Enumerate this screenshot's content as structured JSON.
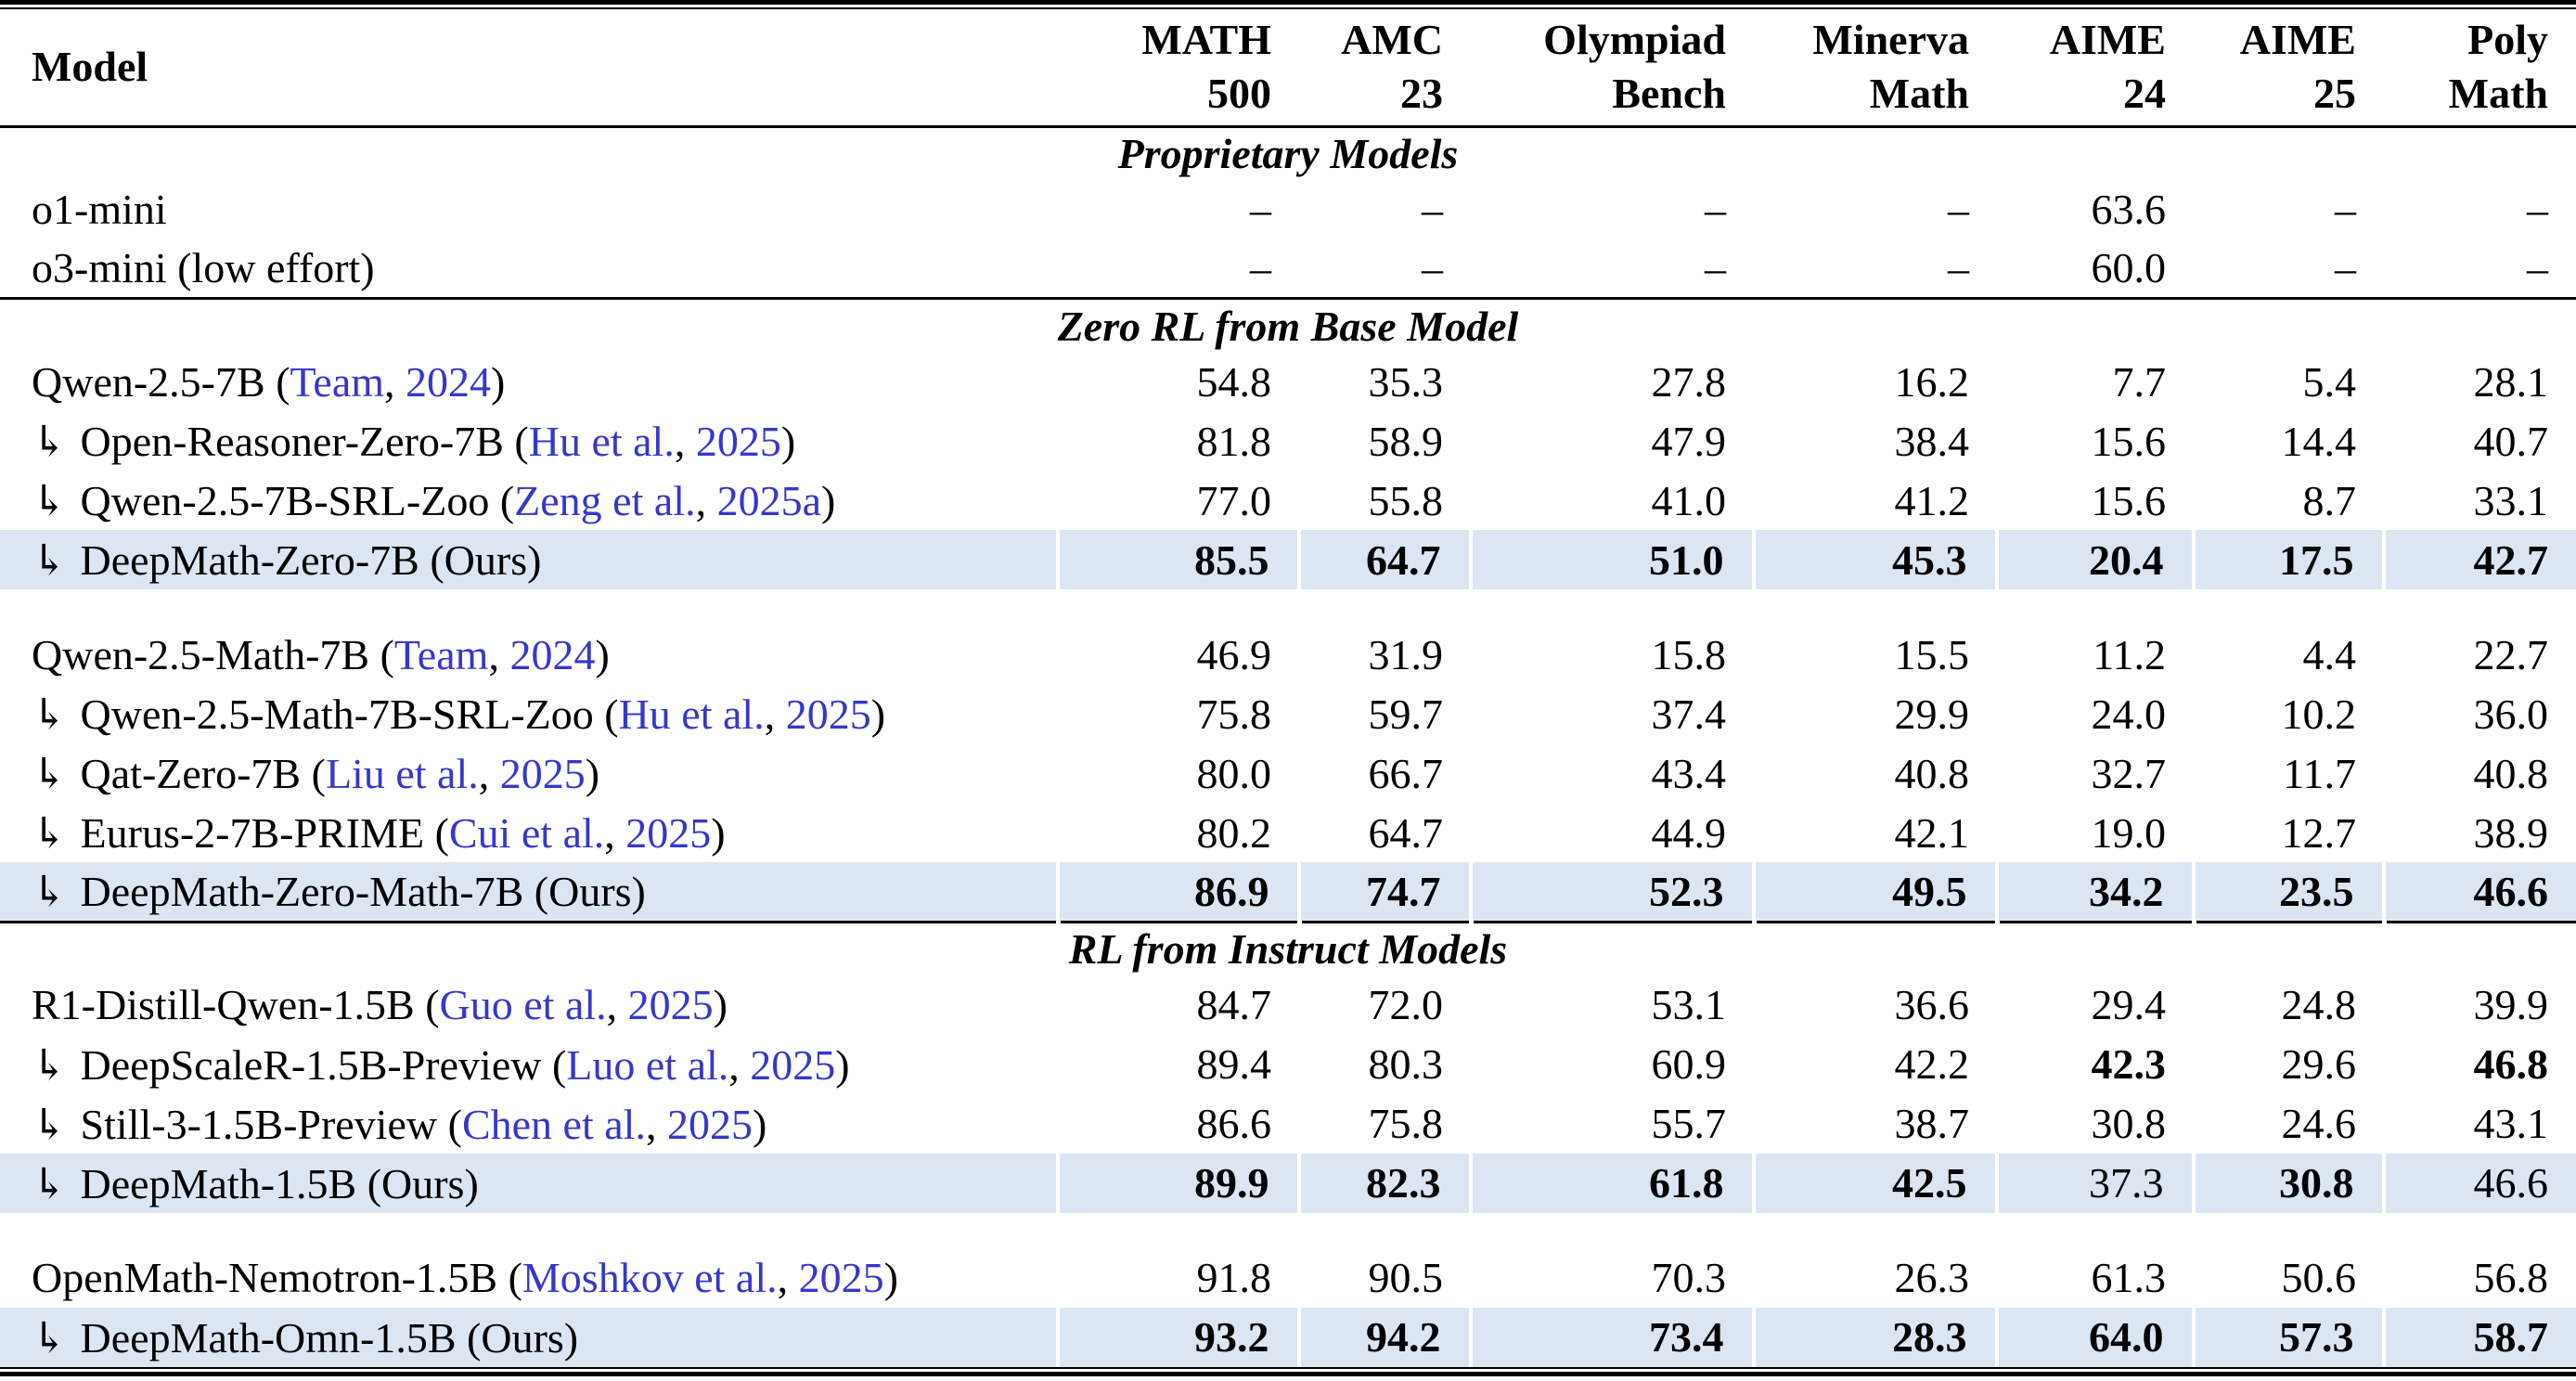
{
  "colors": {
    "highlight_row_bg": "#dce6f3",
    "citation_blue": "#3737cd",
    "text": "#000000",
    "background": "#ffffff"
  },
  "glyphs": {
    "indent_arrow": "↳",
    "dash": "–"
  },
  "header": {
    "model": "Model",
    "columns": [
      "MATH\n500",
      "AMC\n23",
      "Olympiad\nBench",
      "Minerva\nMath",
      "AIME\n24",
      "AIME\n25",
      "Poly\nMath"
    ]
  },
  "sections": [
    {
      "title": "Proprietary Models",
      "groups": [
        [
          {
            "arrow": false,
            "name": "o1-mini",
            "cite": null,
            "suffix": "",
            "highlight": false,
            "values": [
              "–",
              "–",
              "–",
              "–",
              "63.6",
              "–",
              "–"
            ],
            "bold": [
              0,
              0,
              0,
              0,
              0,
              0,
              0
            ]
          },
          {
            "arrow": false,
            "name": "o3-mini (low effort)",
            "cite": null,
            "suffix": "",
            "highlight": false,
            "values": [
              "–",
              "–",
              "–",
              "–",
              "60.0",
              "–",
              "–"
            ],
            "bold": [
              0,
              0,
              0,
              0,
              0,
              0,
              0
            ]
          }
        ]
      ]
    },
    {
      "title": "Zero RL from Base Model",
      "groups": [
        [
          {
            "arrow": false,
            "name": "Qwen-2.5-7B",
            "cite": {
              "author": "Team",
              "year": "2024"
            },
            "suffix": "",
            "highlight": false,
            "values": [
              "54.8",
              "35.3",
              "27.8",
              "16.2",
              "7.7",
              "5.4",
              "28.1"
            ],
            "bold": [
              0,
              0,
              0,
              0,
              0,
              0,
              0
            ]
          },
          {
            "arrow": true,
            "name": "Open-Reasoner-Zero-7B",
            "cite": {
              "author": "Hu et al.",
              "year": "2025"
            },
            "suffix": "",
            "highlight": false,
            "values": [
              "81.8",
              "58.9",
              "47.9",
              "38.4",
              "15.6",
              "14.4",
              "40.7"
            ],
            "bold": [
              0,
              0,
              0,
              0,
              0,
              0,
              0
            ]
          },
          {
            "arrow": true,
            "name": "Qwen-2.5-7B-SRL-Zoo",
            "cite": {
              "author": "Zeng et al.",
              "year": "2025a"
            },
            "suffix": "",
            "highlight": false,
            "values": [
              "77.0",
              "55.8",
              "41.0",
              "41.2",
              "15.6",
              "8.7",
              "33.1"
            ],
            "bold": [
              0,
              0,
              0,
              0,
              0,
              0,
              0
            ]
          },
          {
            "arrow": true,
            "name": "DeepMath-Zero-7B",
            "cite": null,
            "suffix": "(Ours)",
            "highlight": true,
            "values": [
              "85.5",
              "64.7",
              "51.0",
              "45.3",
              "20.4",
              "17.5",
              "42.7"
            ],
            "bold": [
              1,
              1,
              1,
              1,
              1,
              1,
              1
            ]
          }
        ],
        [
          {
            "arrow": false,
            "name": "Qwen-2.5-Math-7B",
            "cite": {
              "author": "Team",
              "year": "2024"
            },
            "suffix": "",
            "highlight": false,
            "values": [
              "46.9",
              "31.9",
              "15.8",
              "15.5",
              "11.2",
              "4.4",
              "22.7"
            ],
            "bold": [
              0,
              0,
              0,
              0,
              0,
              0,
              0
            ]
          },
          {
            "arrow": true,
            "name": "Qwen-2.5-Math-7B-SRL-Zoo",
            "cite": {
              "author": "Hu et al.",
              "year": "2025"
            },
            "suffix": "",
            "highlight": false,
            "values": [
              "75.8",
              "59.7",
              "37.4",
              "29.9",
              "24.0",
              "10.2",
              "36.0"
            ],
            "bold": [
              0,
              0,
              0,
              0,
              0,
              0,
              0
            ]
          },
          {
            "arrow": true,
            "name": "Qat-Zero-7B",
            "cite": {
              "author": "Liu et al.",
              "year": "2025"
            },
            "suffix": "",
            "highlight": false,
            "values": [
              "80.0",
              "66.7",
              "43.4",
              "40.8",
              "32.7",
              "11.7",
              "40.8"
            ],
            "bold": [
              0,
              0,
              0,
              0,
              0,
              0,
              0
            ]
          },
          {
            "arrow": true,
            "name": "Eurus-2-7B-PRIME",
            "cite": {
              "author": "Cui et al.",
              "year": "2025"
            },
            "suffix": "",
            "highlight": false,
            "values": [
              "80.2",
              "64.7",
              "44.9",
              "42.1",
              "19.0",
              "12.7",
              "38.9"
            ],
            "bold": [
              0,
              0,
              0,
              0,
              0,
              0,
              0
            ]
          },
          {
            "arrow": true,
            "name": "DeepMath-Zero-Math-7B",
            "cite": null,
            "suffix": "(Ours)",
            "highlight": true,
            "values": [
              "86.9",
              "74.7",
              "52.3",
              "49.5",
              "34.2",
              "23.5",
              "46.6"
            ],
            "bold": [
              1,
              1,
              1,
              1,
              1,
              1,
              1
            ]
          }
        ]
      ]
    },
    {
      "title": "RL from Instruct Models",
      "groups": [
        [
          {
            "arrow": false,
            "name": "R1-Distill-Qwen-1.5B",
            "cite": {
              "author": "Guo et al.",
              "year": "2025"
            },
            "suffix": "",
            "highlight": false,
            "values": [
              "84.7",
              "72.0",
              "53.1",
              "36.6",
              "29.4",
              "24.8",
              "39.9"
            ],
            "bold": [
              0,
              0,
              0,
              0,
              0,
              0,
              0
            ]
          },
          {
            "arrow": true,
            "name": "DeepScaleR-1.5B-Preview",
            "cite": {
              "author": "Luo et al.",
              "year": "2025"
            },
            "suffix": "",
            "highlight": false,
            "values": [
              "89.4",
              "80.3",
              "60.9",
              "42.2",
              "42.3",
              "29.6",
              "46.8"
            ],
            "bold": [
              0,
              0,
              0,
              0,
              1,
              0,
              1
            ]
          },
          {
            "arrow": true,
            "name": "Still-3-1.5B-Preview",
            "cite": {
              "author": "Chen et al.",
              "year": "2025"
            },
            "suffix": "",
            "highlight": false,
            "values": [
              "86.6",
              "75.8",
              "55.7",
              "38.7",
              "30.8",
              "24.6",
              "43.1"
            ],
            "bold": [
              0,
              0,
              0,
              0,
              0,
              0,
              0
            ]
          },
          {
            "arrow": true,
            "name": "DeepMath-1.5B",
            "cite": null,
            "suffix": "(Ours)",
            "highlight": true,
            "values": [
              "89.9",
              "82.3",
              "61.8",
              "42.5",
              "37.3",
              "30.8",
              "46.6"
            ],
            "bold": [
              1,
              1,
              1,
              1,
              0,
              1,
              0
            ]
          }
        ],
        [
          {
            "arrow": false,
            "name": "OpenMath-Nemotron-1.5B",
            "cite": {
              "author": "Moshkov et al.",
              "year": "2025"
            },
            "suffix": "",
            "highlight": false,
            "values": [
              "91.8",
              "90.5",
              "70.3",
              "26.3",
              "61.3",
              "50.6",
              "56.8"
            ],
            "bold": [
              0,
              0,
              0,
              0,
              0,
              0,
              0
            ]
          },
          {
            "arrow": true,
            "name": "DeepMath-Omn-1.5B",
            "cite": null,
            "suffix": "(Ours)",
            "highlight": true,
            "values": [
              "93.2",
              "94.2",
              "73.4",
              "28.3",
              "64.0",
              "57.3",
              "58.7"
            ],
            "bold": [
              1,
              1,
              1,
              1,
              1,
              1,
              1
            ]
          }
        ]
      ]
    }
  ]
}
